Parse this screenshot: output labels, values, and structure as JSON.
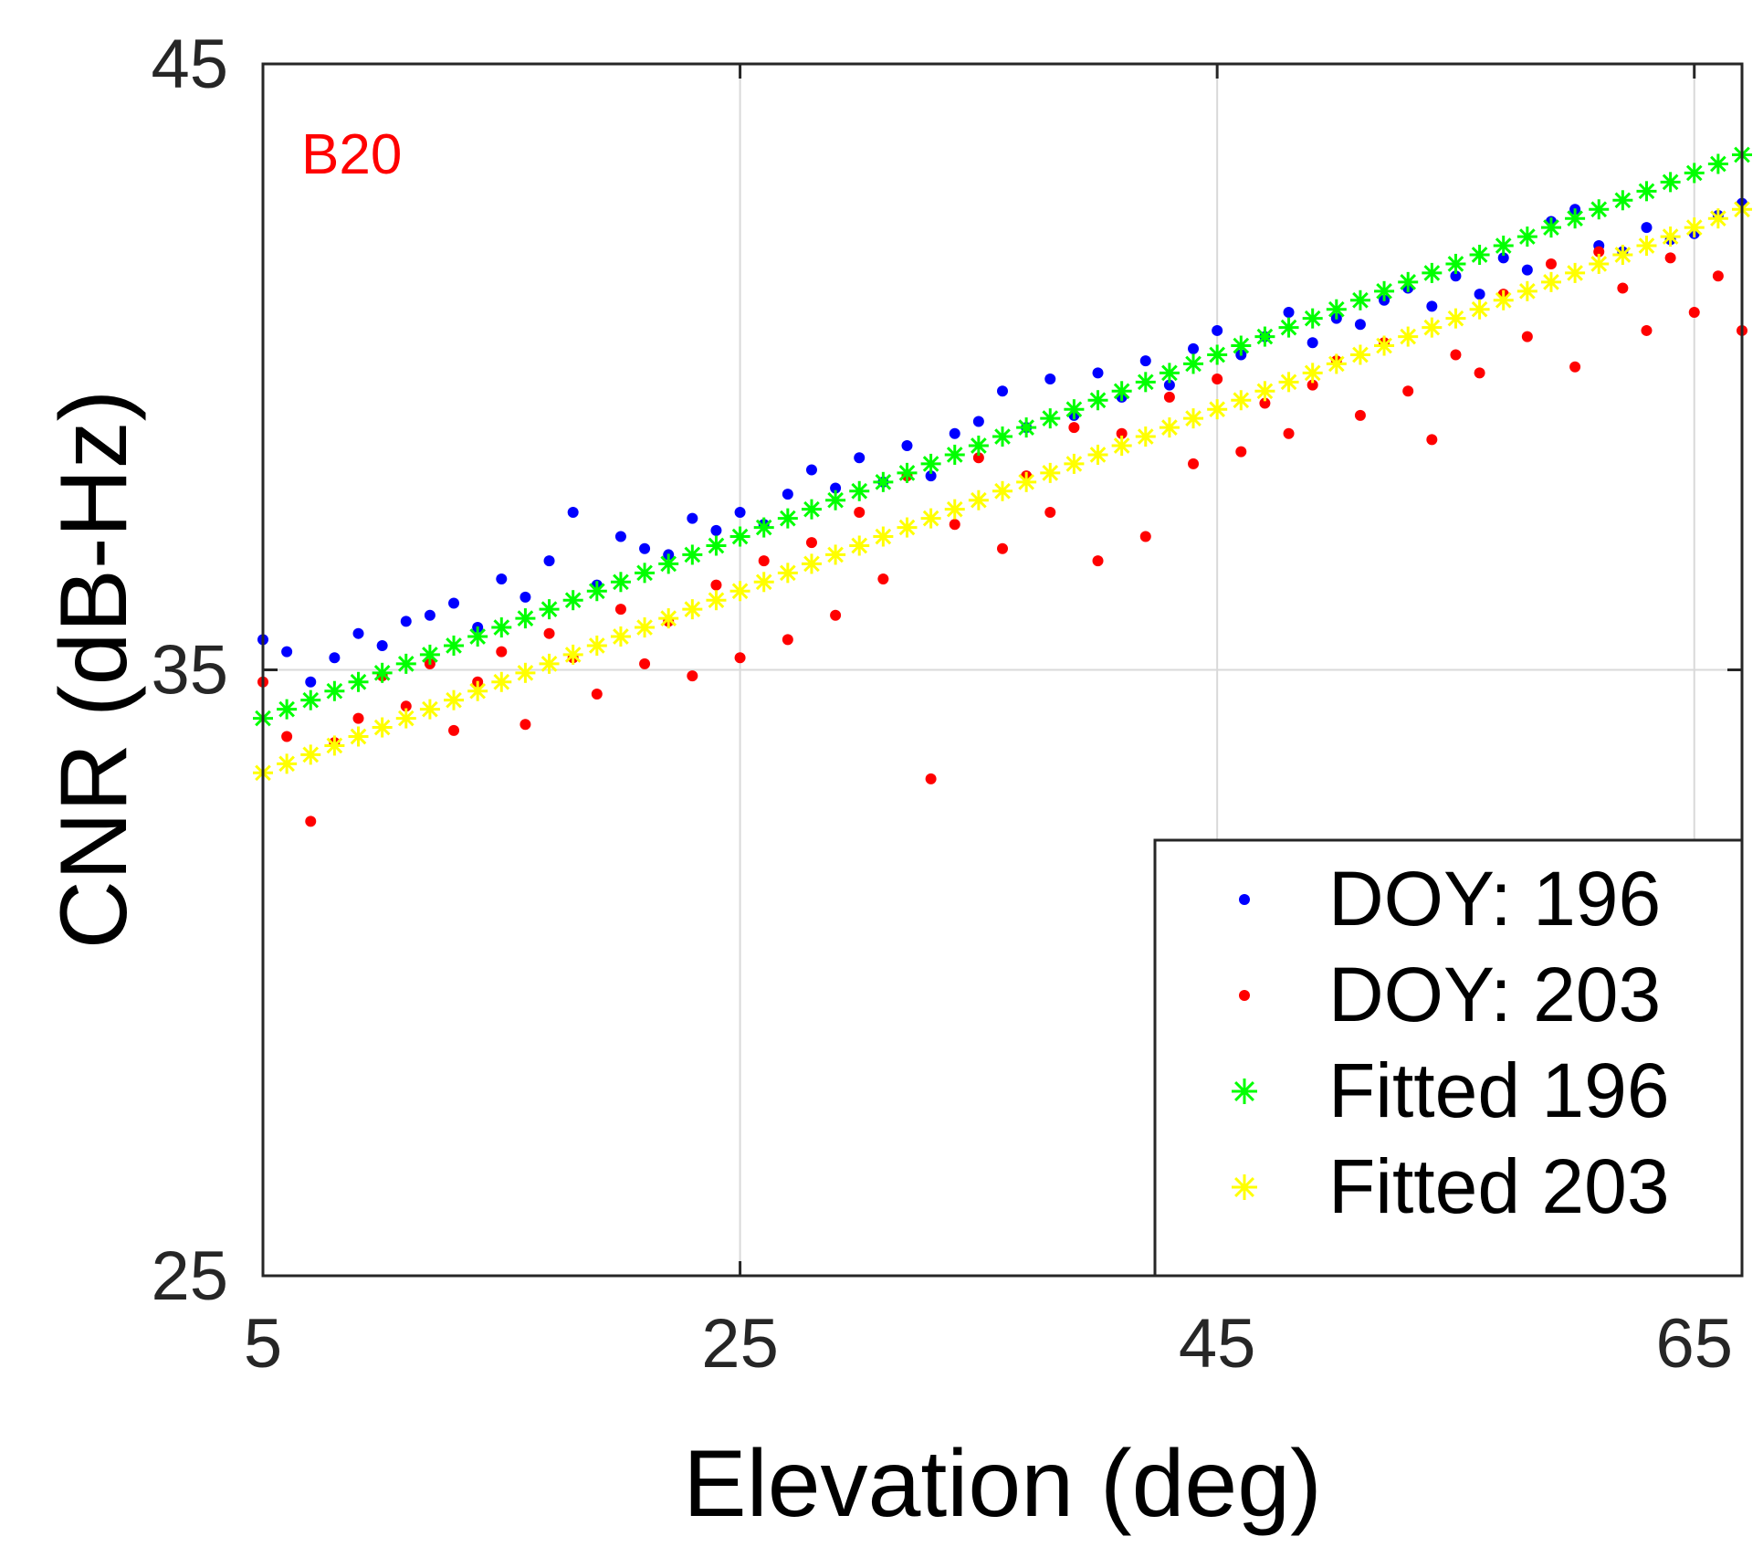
{
  "chart_data": {
    "type": "scatter",
    "title": "",
    "annotation": {
      "text": "B20",
      "color": "#ff0000"
    },
    "xlabel": "Elevation (deg)",
    "ylabel": "CNR (dB-Hz)",
    "xlim": [
      5,
      67
    ],
    "ylim": [
      25,
      45
    ],
    "xticks": [
      5,
      25,
      45,
      65
    ],
    "yticks": [
      25,
      35,
      45
    ],
    "xtick_labels": [
      "5",
      "25",
      "45",
      "65"
    ],
    "ytick_labels": [
      "25",
      "35",
      "45"
    ],
    "grid": true,
    "legend_position": "bottom-right",
    "series": [
      {
        "name": "DOY: 196",
        "marker": "dot",
        "color": "#0000ff",
        "x": [
          5,
          6,
          7,
          8,
          9,
          10,
          11,
          12,
          13,
          14,
          15,
          16,
          17,
          18,
          19,
          20,
          21,
          22,
          23,
          24,
          25,
          26,
          27,
          28,
          29,
          30,
          31,
          32,
          33,
          34,
          35,
          36,
          37,
          38,
          39,
          40,
          41,
          42,
          43,
          44,
          45,
          46,
          47,
          48,
          49,
          50,
          51,
          52,
          53,
          54,
          55,
          56,
          57,
          58,
          59,
          60,
          61,
          62,
          63,
          64,
          65,
          66,
          67
        ],
        "y": [
          35.5,
          35.3,
          34.8,
          35.2,
          35.6,
          35.4,
          35.8,
          35.9,
          36.1,
          35.7,
          36.5,
          36.2,
          36.8,
          37.6,
          36.4,
          37.2,
          37.0,
          36.9,
          37.5,
          37.3,
          37.6,
          37.4,
          37.9,
          38.3,
          38.0,
          38.5,
          38.1,
          38.7,
          38.2,
          38.9,
          39.1,
          39.6,
          39.0,
          39.8,
          39.2,
          39.9,
          39.5,
          40.1,
          39.7,
          40.3,
          40.6,
          40.2,
          40.5,
          40.9,
          40.4,
          40.8,
          40.7,
          41.1,
          41.3,
          41.0,
          41.5,
          41.2,
          41.8,
          41.6,
          42.4,
          42.6,
          42.0,
          41.9,
          42.3,
          42.1,
          42.2,
          42.5,
          42.7
        ]
      },
      {
        "name": "DOY: 203",
        "marker": "dot",
        "color": "#ff0000",
        "x": [
          5,
          6,
          7,
          8,
          9,
          10,
          11,
          12,
          13,
          14,
          15,
          16,
          17,
          18,
          19,
          20,
          21,
          22,
          23,
          24,
          25,
          26,
          27,
          28,
          29,
          30,
          31,
          32,
          33,
          34,
          35,
          36,
          37,
          38,
          39,
          40,
          41,
          42,
          43,
          44,
          45,
          46,
          47,
          48,
          49,
          50,
          51,
          52,
          53,
          54,
          55,
          56,
          57,
          58,
          59,
          60,
          61,
          62,
          63,
          64,
          65,
          66,
          67
        ],
        "y": [
          34.8,
          33.9,
          32.5,
          33.8,
          34.2,
          34.9,
          34.4,
          35.1,
          34.0,
          34.8,
          35.3,
          34.1,
          35.6,
          35.2,
          34.6,
          36.0,
          35.1,
          35.8,
          34.9,
          36.4,
          35.2,
          36.8,
          35.5,
          37.1,
          35.9,
          37.6,
          36.5,
          38.2,
          33.2,
          37.4,
          38.5,
          37.0,
          38.2,
          37.6,
          39.0,
          36.8,
          38.9,
          37.2,
          39.5,
          38.4,
          39.8,
          38.6,
          39.4,
          38.9,
          39.7,
          40.1,
          39.2,
          40.4,
          39.6,
          38.8,
          40.2,
          39.9,
          41.2,
          40.5,
          41.7,
          40.0,
          41.9,
          41.3,
          40.6,
          41.8,
          40.9,
          41.5,
          40.6
        ]
      },
      {
        "name": "Fitted 196",
        "marker": "asterisk",
        "color": "#00ff00",
        "x": [
          5,
          6,
          7,
          8,
          9,
          10,
          11,
          12,
          13,
          14,
          15,
          16,
          17,
          18,
          19,
          20,
          21,
          22,
          23,
          24,
          25,
          26,
          27,
          28,
          29,
          30,
          31,
          32,
          33,
          34,
          35,
          36,
          37,
          38,
          39,
          40,
          41,
          42,
          43,
          44,
          45,
          46,
          47,
          48,
          49,
          50,
          51,
          52,
          53,
          54,
          55,
          56,
          57,
          58,
          59,
          60,
          61,
          62,
          63,
          64,
          65,
          66,
          67
        ],
        "y": [
          34.2,
          34.35,
          34.5,
          34.65,
          34.8,
          34.95,
          35.1,
          35.25,
          35.4,
          35.55,
          35.7,
          35.85,
          36.0,
          36.15,
          36.3,
          36.45,
          36.6,
          36.75,
          36.9,
          37.05,
          37.2,
          37.35,
          37.5,
          37.65,
          37.8,
          37.95,
          38.1,
          38.25,
          38.4,
          38.55,
          38.7,
          38.85,
          39.0,
          39.15,
          39.3,
          39.45,
          39.6,
          39.75,
          39.9,
          40.05,
          40.2,
          40.35,
          40.5,
          40.65,
          40.8,
          40.95,
          41.1,
          41.25,
          41.4,
          41.55,
          41.7,
          41.85,
          42.0,
          42.15,
          42.3,
          42.45,
          42.6,
          42.75,
          42.9,
          43.05,
          43.2,
          43.35,
          43.5
        ]
      },
      {
        "name": "Fitted 203",
        "marker": "asterisk",
        "color": "#ffff00",
        "x": [
          5,
          6,
          7,
          8,
          9,
          10,
          11,
          12,
          13,
          14,
          15,
          16,
          17,
          18,
          19,
          20,
          21,
          22,
          23,
          24,
          25,
          26,
          27,
          28,
          29,
          30,
          31,
          32,
          33,
          34,
          35,
          36,
          37,
          38,
          39,
          40,
          41,
          42,
          43,
          44,
          45,
          46,
          47,
          48,
          49,
          50,
          51,
          52,
          53,
          54,
          55,
          56,
          57,
          58,
          59,
          60,
          61,
          62,
          63,
          64,
          65,
          66,
          67
        ],
        "y": [
          33.3,
          33.45,
          33.6,
          33.75,
          33.9,
          34.05,
          34.2,
          34.35,
          34.5,
          34.65,
          34.8,
          34.95,
          35.1,
          35.25,
          35.4,
          35.55,
          35.7,
          35.85,
          36.0,
          36.15,
          36.3,
          36.45,
          36.6,
          36.75,
          36.9,
          37.05,
          37.2,
          37.35,
          37.5,
          37.65,
          37.8,
          37.95,
          38.1,
          38.25,
          38.4,
          38.55,
          38.7,
          38.85,
          39.0,
          39.15,
          39.3,
          39.45,
          39.6,
          39.75,
          39.9,
          40.05,
          40.2,
          40.35,
          40.5,
          40.65,
          40.8,
          40.95,
          41.1,
          41.25,
          41.4,
          41.55,
          41.7,
          41.85,
          42.0,
          42.15,
          42.3,
          42.45,
          42.6
        ]
      }
    ]
  }
}
